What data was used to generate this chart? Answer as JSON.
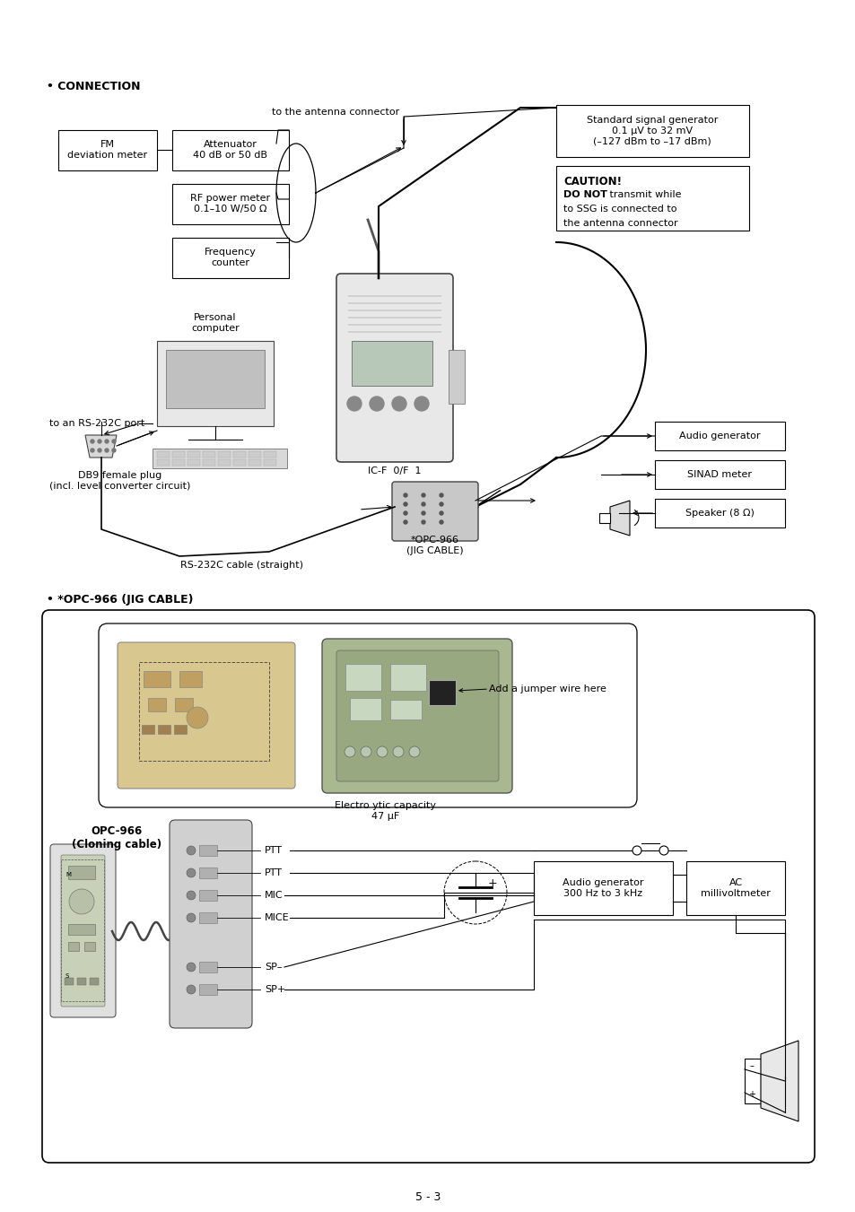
{
  "background_color": "#ffffff",
  "page_number": "5 - 3",
  "section1_title": "• CONNECTION",
  "section2_title": "• *OPC-966 (JIG CABLE)"
}
